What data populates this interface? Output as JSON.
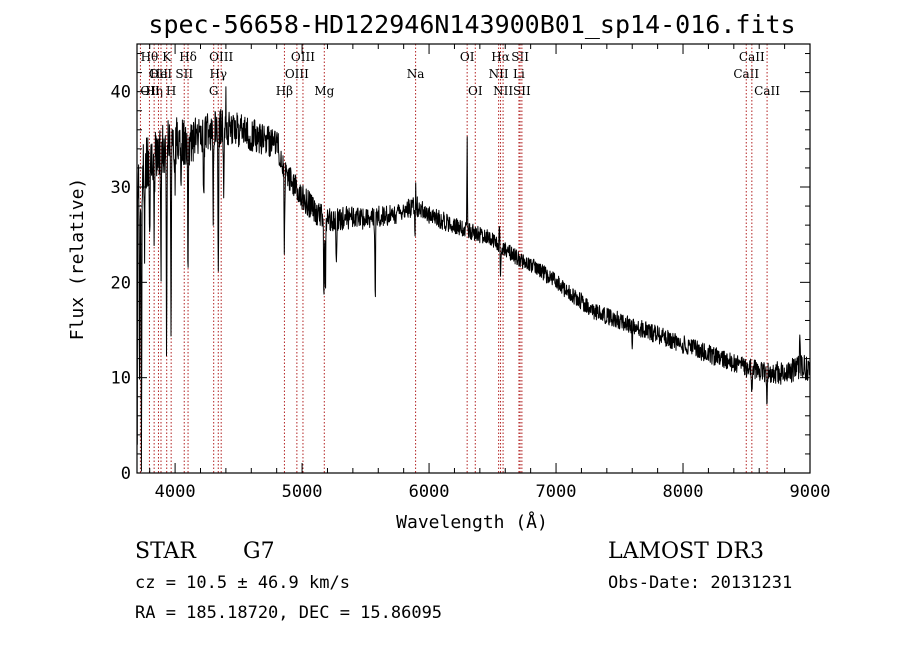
{
  "chart_data": {
    "type": "line",
    "title": "spec-56658-HD122946N143900B01_sp14-016.fits",
    "xlabel": "Wavelength (Å)",
    "ylabel": "Flux (relative)",
    "xlim": [
      3700,
      9000
    ],
    "ylim": [
      0,
      45
    ],
    "xticks": [
      4000,
      5000,
      6000,
      7000,
      8000,
      9000
    ],
    "yticks": [
      0,
      10,
      20,
      30,
      40
    ],
    "x_minor_step": 200,
    "y_minor_step": 2,
    "color": "#000000",
    "marker_color": "#b22222",
    "continuum": [
      [
        3700,
        31
      ],
      [
        3800,
        33
      ],
      [
        3900,
        34
      ],
      [
        4000,
        35
      ],
      [
        4100,
        34.5
      ],
      [
        4200,
        35.5
      ],
      [
        4300,
        36
      ],
      [
        4400,
        36.3
      ],
      [
        4500,
        36
      ],
      [
        4600,
        35.5
      ],
      [
        4700,
        35
      ],
      [
        4800,
        34.5
      ],
      [
        4900,
        31
      ],
      [
        5000,
        29
      ],
      [
        5100,
        27.5
      ],
      [
        5200,
        26.5
      ],
      [
        5300,
        26.5
      ],
      [
        5400,
        27
      ],
      [
        5500,
        26.5
      ],
      [
        5600,
        27
      ],
      [
        5700,
        27
      ],
      [
        5800,
        27.5
      ],
      [
        5900,
        28
      ],
      [
        6000,
        27
      ],
      [
        6100,
        26.5
      ],
      [
        6200,
        26
      ],
      [
        6300,
        25.5
      ],
      [
        6400,
        25
      ],
      [
        6500,
        24.5
      ],
      [
        6600,
        23.5
      ],
      [
        6700,
        22.5
      ],
      [
        6800,
        21.8
      ],
      [
        6900,
        21
      ],
      [
        7000,
        20
      ],
      [
        7100,
        19
      ],
      [
        7200,
        18
      ],
      [
        7300,
        17
      ],
      [
        7400,
        16.5
      ],
      [
        7500,
        16
      ],
      [
        7600,
        15.5
      ],
      [
        7700,
        15
      ],
      [
        7800,
        14.5
      ],
      [
        7900,
        14
      ],
      [
        8000,
        13.5
      ],
      [
        8100,
        13
      ],
      [
        8200,
        12.5
      ],
      [
        8300,
        12
      ],
      [
        8400,
        11.5
      ],
      [
        8500,
        11
      ],
      [
        8600,
        10.8
      ],
      [
        8700,
        10.5
      ],
      [
        8800,
        10.5
      ],
      [
        8900,
        11
      ],
      [
        9000,
        11
      ]
    ],
    "absorption_features": [
      [
        3720,
        -22
      ],
      [
        3735,
        -30
      ],
      [
        3760,
        -8
      ],
      [
        3800,
        -9
      ],
      [
        3835,
        -8
      ],
      [
        3889,
        -12
      ],
      [
        3933,
        -20
      ],
      [
        3968,
        -22
      ],
      [
        4000,
        -5
      ],
      [
        4046,
        -6
      ],
      [
        4102,
        -14
      ],
      [
        4226,
        -7
      ],
      [
        4300,
        -9
      ],
      [
        4340,
        -16
      ],
      [
        4384,
        -7
      ],
      [
        4861,
        -9
      ],
      [
        5172,
        -9
      ],
      [
        5184,
        -7
      ],
      [
        5270,
        -4
      ],
      [
        5576,
        -9
      ],
      [
        5890,
        -5
      ],
      [
        6563,
        -3
      ],
      [
        7600,
        -2
      ],
      [
        8542,
        -3
      ],
      [
        8662,
        -3
      ]
    ],
    "emission_features": [
      [
        4400,
        3
      ],
      [
        5893,
        4
      ],
      [
        6300,
        9
      ],
      [
        6555,
        2
      ],
      [
        8920,
        4
      ]
    ],
    "noise": [
      [
        3700,
        3.0
      ],
      [
        4500,
        1.8
      ],
      [
        5000,
        1.4
      ],
      [
        6500,
        0.8
      ],
      [
        8500,
        1.0
      ],
      [
        9000,
        1.4
      ]
    ],
    "lines": [
      {
        "x": 3727,
        "label": "OII",
        "row": 2,
        "anchor": "start"
      },
      {
        "x": 3798,
        "label": "Hθ",
        "row": 0,
        "anchor": "middle"
      },
      {
        "x": 3835,
        "label": "Hη",
        "row": 2,
        "anchor": "middle"
      },
      {
        "x": 3869,
        "label": "OII",
        "row": 1,
        "anchor": "middle"
      },
      {
        "x": 3889,
        "label": "HeI",
        "row": 1,
        "anchor": "middle"
      },
      {
        "x": 3934,
        "label": "K",
        "row": 0,
        "anchor": "middle"
      },
      {
        "x": 3969,
        "label": "H",
        "row": 2,
        "anchor": "middle"
      },
      {
        "x": 4072,
        "label": "SII",
        "row": 1,
        "anchor": "middle"
      },
      {
        "x": 4102,
        "label": "Hδ",
        "row": 0,
        "anchor": "middle"
      },
      {
        "x": 4304,
        "label": "G",
        "row": 2,
        "anchor": "middle"
      },
      {
        "x": 4340,
        "label": "Hγ",
        "row": 1,
        "anchor": "middle"
      },
      {
        "x": 4363,
        "label": "OIII",
        "row": 0,
        "anchor": "middle"
      },
      {
        "x": 4861,
        "label": "Hβ",
        "row": 2,
        "anchor": "middle"
      },
      {
        "x": 4959,
        "label": "OIII",
        "row": 1,
        "anchor": "middle"
      },
      {
        "x": 5007,
        "label": "OIII",
        "row": 0,
        "anchor": "middle"
      },
      {
        "x": 5175,
        "label": "Mg",
        "row": 2,
        "anchor": "middle"
      },
      {
        "x": 5894,
        "label": "Na",
        "row": 1,
        "anchor": "middle"
      },
      {
        "x": 6300,
        "label": "OI",
        "row": 0,
        "anchor": "middle"
      },
      {
        "x": 6364,
        "label": "OI",
        "row": 2,
        "anchor": "middle"
      },
      {
        "x": 6548,
        "label": "NII",
        "row": 1,
        "anchor": "middle"
      },
      {
        "x": 6563,
        "label": "Hα",
        "row": 0,
        "anchor": "middle"
      },
      {
        "x": 6583,
        "label": "NII",
        "row": 2,
        "anchor": "middle"
      },
      {
        "x": 6708,
        "label": "Li",
        "row": 1,
        "anchor": "middle"
      },
      {
        "x": 6717,
        "label": "SII",
        "row": 0,
        "anchor": "middle"
      },
      {
        "x": 6731,
        "label": "SII",
        "row": 2,
        "anchor": "middle"
      },
      {
        "x": 8498,
        "label": "CaII",
        "row": 1,
        "anchor": "middle"
      },
      {
        "x": 8542,
        "label": "CaII",
        "row": 0,
        "anchor": "middle"
      },
      {
        "x": 8662,
        "label": "CaII",
        "row": 2,
        "anchor": "middle"
      }
    ]
  },
  "info": {
    "class": "STAR",
    "subclass": "G7",
    "survey": "LAMOST DR3",
    "cz": "cz = 10.5 ± 46.9 km/s",
    "obs_date": "Obs-Date: 20131231",
    "coords": "RA = 185.18720, DEC =  15.86095"
  }
}
